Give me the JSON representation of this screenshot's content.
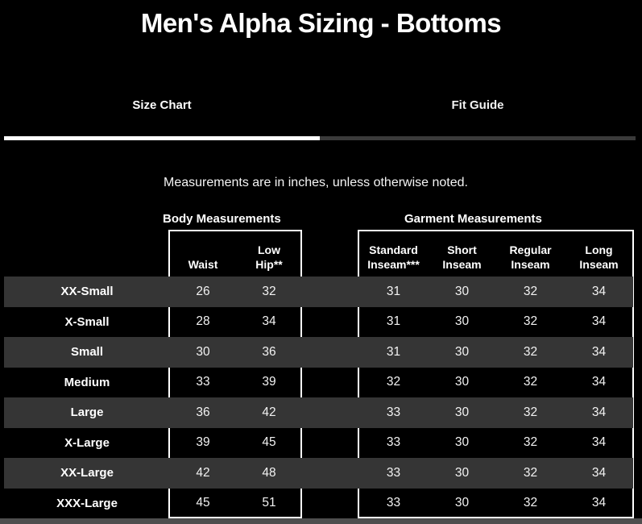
{
  "page": {
    "title": "Men's Alpha Sizing - Bottoms",
    "note": "Measurements are in inches, unless otherwise noted."
  },
  "tabs": [
    {
      "label": "Size Chart",
      "active": true
    },
    {
      "label": "Fit Guide",
      "active": false
    }
  ],
  "groups": [
    {
      "label": "Body Measurements"
    },
    {
      "label": "Garment Measurements"
    }
  ],
  "columns": [
    "Waist",
    "Low\nHip**",
    "Standard\nInseam***",
    "Short\nInseam",
    "Regular\nInseam",
    "Long\nInseam"
  ],
  "table": {
    "rows": [
      {
        "size": "XX-Small",
        "values": [
          "26",
          "32",
          "31",
          "30",
          "32",
          "34"
        ]
      },
      {
        "size": "X-Small",
        "values": [
          "28",
          "34",
          "31",
          "30",
          "32",
          "34"
        ]
      },
      {
        "size": "Small",
        "values": [
          "30",
          "36",
          "31",
          "30",
          "32",
          "34"
        ]
      },
      {
        "size": "Medium",
        "values": [
          "33",
          "39",
          "32",
          "30",
          "32",
          "34"
        ]
      },
      {
        "size": "Large",
        "values": [
          "36",
          "42",
          "33",
          "30",
          "32",
          "34"
        ]
      },
      {
        "size": "X-Large",
        "values": [
          "39",
          "45",
          "33",
          "30",
          "32",
          "34"
        ]
      },
      {
        "size": "XX-Large",
        "values": [
          "42",
          "48",
          "33",
          "30",
          "32",
          "34"
        ]
      },
      {
        "size": "XXX-Large",
        "values": [
          "45",
          "51",
          "33",
          "30",
          "32",
          "34"
        ]
      }
    ]
  },
  "colors": {
    "background": "#000000",
    "row_band": "#353535",
    "active_tab_underline": "#ffffff",
    "inactive_tab_underline": "#3a3a3a",
    "box_border": "#ffffff",
    "text": "#ffffff",
    "scrollbar": "#4e4e4e"
  }
}
